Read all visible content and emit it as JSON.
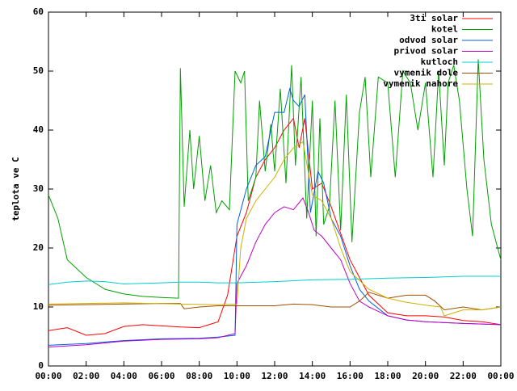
{
  "chart_data": {
    "type": "line",
    "y_label": "teplota ve C",
    "xlim": [
      0,
      24
    ],
    "ylim": [
      0,
      60
    ],
    "xticks": [
      {
        "value": 0,
        "label": "00:00"
      },
      {
        "value": 2,
        "label": "02:00"
      },
      {
        "value": 4,
        "label": "04:00"
      },
      {
        "value": 6,
        "label": "06:00"
      },
      {
        "value": 8,
        "label": "08:00"
      },
      {
        "value": 10,
        "label": "10:00"
      },
      {
        "value": 12,
        "label": "12:00"
      },
      {
        "value": 14,
        "label": "14:00"
      },
      {
        "value": 16,
        "label": "16:00"
      },
      {
        "value": 18,
        "label": "18:00"
      },
      {
        "value": 20,
        "label": "20:00"
      },
      {
        "value": 22,
        "label": "22:00"
      },
      {
        "value": 24,
        "label": "00:00"
      }
    ],
    "yticks": [
      0,
      10,
      20,
      30,
      40,
      50,
      60
    ],
    "legend": "top-right",
    "grid": false,
    "series": [
      {
        "name": "3ti solar",
        "color": "#ff0000",
        "x": [
          0,
          1,
          2,
          3,
          4,
          5,
          6,
          7,
          8,
          9,
          9.5,
          10,
          10.5,
          11,
          11.5,
          12,
          12.5,
          13,
          13.3,
          13.6,
          14,
          14.5,
          15,
          16,
          17,
          18,
          19,
          20,
          21,
          22,
          23,
          24
        ],
        "values": [
          6,
          6.5,
          5.2,
          5.5,
          6.7,
          7,
          6.8,
          6.6,
          6.5,
          7.5,
          12,
          22,
          26,
          32,
          35,
          37,
          40,
          42,
          37,
          42,
          30,
          31,
          27,
          18,
          12,
          9,
          8.5,
          8.5,
          8.3,
          7.7,
          7.5,
          7
        ]
      },
      {
        "name": "kotel",
        "color": "#00a000",
        "x": [
          0,
          0.5,
          1,
          2,
          3,
          4,
          5,
          6,
          6.9,
          7,
          7.2,
          7.5,
          7.7,
          8,
          8.3,
          8.6,
          8.9,
          9.2,
          9.6,
          9.9,
          10.2,
          10.4,
          10.6,
          11,
          11.2,
          11.5,
          11.8,
          12,
          12.3,
          12.6,
          12.9,
          13.1,
          13.4,
          13.7,
          14,
          14.2,
          14.4,
          14.6,
          14.9,
          15.2,
          15.5,
          15.8,
          16.1,
          16.5,
          16.8,
          17.1,
          17.5,
          18,
          18.4,
          18.8,
          19.2,
          19.6,
          20,
          20.4,
          20.7,
          21,
          21.2,
          21.5,
          21.8,
          22.2,
          22.5,
          22.8,
          23.1,
          23.5,
          24
        ],
        "values": [
          29,
          25,
          18,
          15,
          13,
          12.2,
          11.8,
          11.6,
          11.5,
          50.5,
          27,
          40,
          30,
          39,
          28,
          34,
          26,
          28,
          26.5,
          50,
          48,
          50,
          28,
          32,
          45,
          33,
          41,
          33,
          47,
          31,
          51,
          34,
          49,
          25,
          45,
          22,
          42,
          24,
          27,
          45,
          23,
          46,
          21,
          43,
          49,
          32,
          49,
          48,
          32,
          50,
          48,
          40,
          48,
          32,
          50,
          34,
          48,
          51,
          45,
          30,
          22,
          52,
          35,
          24,
          18
        ]
      },
      {
        "name": "odvod solar",
        "color": "#0060e0",
        "x": [
          0,
          2,
          4,
          6,
          8,
          9,
          9.9,
          10,
          10.5,
          11,
          11.5,
          12,
          12.5,
          12.8,
          13,
          13.3,
          13.6,
          13.9,
          14.3,
          14.6,
          15,
          15.5,
          16,
          16.5,
          17,
          18,
          19,
          20,
          22,
          24
        ],
        "values": [
          3.5,
          3.8,
          4.3,
          4.6,
          4.7,
          4.9,
          5.2,
          24,
          30,
          34,
          35.5,
          43,
          43,
          47,
          45,
          44,
          46,
          26,
          33,
          31,
          25,
          22,
          17,
          13,
          11,
          8.5,
          7.8,
          7.5,
          7.2,
          7
        ]
      },
      {
        "name": "privod solar",
        "color": "#c000c0",
        "x": [
          0,
          2,
          4,
          6,
          8,
          9,
          9.9,
          10,
          10.5,
          11,
          11.5,
          12,
          12.5,
          13,
          13.5,
          13.8,
          14.1,
          14.5,
          15,
          15.5,
          16,
          16.5,
          17,
          18,
          19,
          20,
          22,
          24
        ],
        "values": [
          3.2,
          3.6,
          4.2,
          4.5,
          4.6,
          4.8,
          5.5,
          14,
          17,
          21,
          24,
          26,
          27,
          26.5,
          28.5,
          26,
          23,
          22,
          20,
          18,
          14,
          11,
          10,
          8.5,
          7.8,
          7.5,
          7.2,
          7
        ]
      },
      {
        "name": "kutloch",
        "color": "#00d0d0",
        "x": [
          0,
          1,
          2,
          3,
          4,
          5,
          6,
          7,
          8,
          9,
          10,
          12,
          14,
          16,
          18,
          20,
          22,
          24
        ],
        "values": [
          13.8,
          14.2,
          14.4,
          14.3,
          13.9,
          14,
          14.1,
          14.2,
          14.2,
          14.1,
          14.1,
          14.3,
          14.6,
          14.7,
          14.9,
          15,
          15.2,
          15.2
        ]
      },
      {
        "name": "vymenik dole",
        "color": "#a05000",
        "x": [
          0,
          2,
          4,
          6,
          7,
          7.2,
          8,
          9,
          10,
          11,
          12,
          13,
          14,
          15,
          16,
          16.5,
          17,
          18,
          19,
          20,
          20.5,
          21,
          22,
          23,
          24
        ],
        "values": [
          10.3,
          10.4,
          10.5,
          10.6,
          10.6,
          9.7,
          10,
          10.2,
          10.2,
          10.2,
          10.2,
          10.5,
          10.4,
          10,
          10,
          11,
          12.5,
          11.5,
          12,
          12,
          11,
          9.5,
          10,
          9.5,
          10
        ]
      },
      {
        "name": "vymenik nahore",
        "color": "#d0b000",
        "x": [
          0,
          4,
          7,
          9,
          10,
          10.2,
          10.5,
          11,
          11.5,
          12,
          12.5,
          13,
          13.5,
          14,
          14.5,
          15,
          15.5,
          16,
          17,
          18,
          19,
          20,
          20.8,
          21,
          22,
          23,
          24
        ],
        "values": [
          10.5,
          10.7,
          10.5,
          10.4,
          10.5,
          20,
          25,
          28,
          30,
          32,
          35,
          37,
          38,
          29,
          28,
          25,
          20,
          16,
          13,
          11.5,
          10.8,
          10.3,
          10,
          8.5,
          9.5,
          9.5,
          10
        ]
      }
    ]
  }
}
